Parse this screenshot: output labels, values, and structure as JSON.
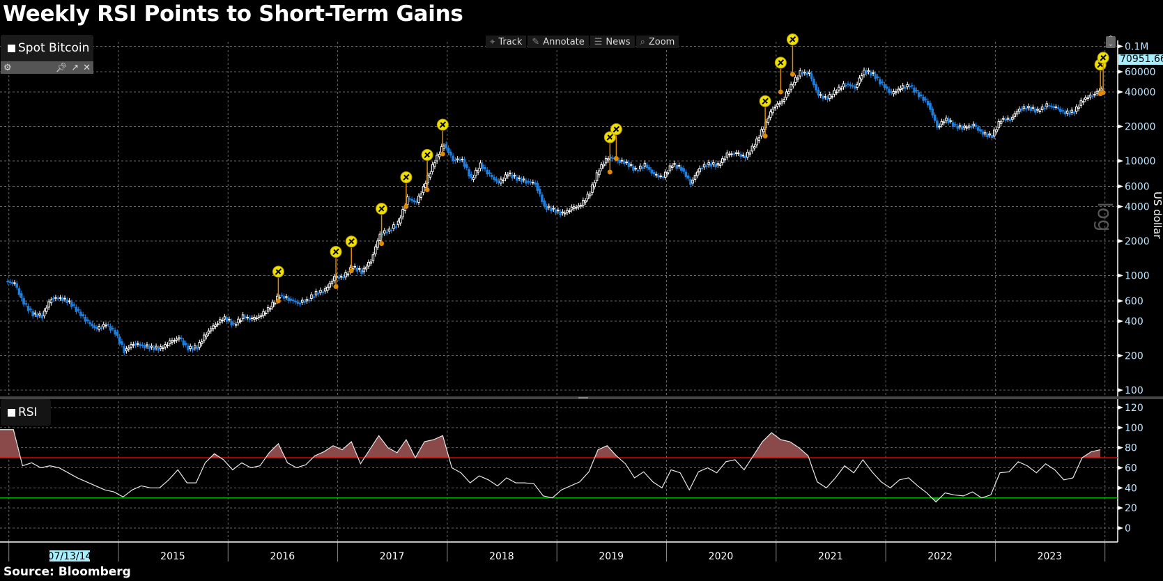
{
  "title": "Weekly RSI Points to Short-Term Gains",
  "source": "Source: Bloomberg",
  "legend": {
    "series": "Spot Bitcoin",
    "rsi": "RSI",
    "icons": [
      "gear-icon",
      "pin-icon",
      "expand-icon",
      "close-icon"
    ]
  },
  "toolbar": {
    "track": "Track",
    "annotate": "Annotate",
    "news": "News",
    "zoom": "Zoom"
  },
  "price_tag": "70951.66",
  "axis": {
    "price_label": "US dollar",
    "scale_label": "log",
    "highlight_date": "07/13/14"
  },
  "colors": {
    "up": "#ffffff",
    "down": "#1e7fe0",
    "overbought": "#ff0000",
    "oversold": "#00cc00",
    "marker": "#f0e000",
    "marker_stem": "#e08a00",
    "rsi_fill": "#8a4a4a"
  },
  "chart_data": [
    {
      "type": "candlestick",
      "title": "Spot Bitcoin",
      "ylabel": "US dollar",
      "yscale": "log",
      "ylim": [
        100,
        100000
      ],
      "yticks": [
        100,
        200,
        400,
        600,
        1000,
        2000,
        4000,
        6000,
        10000,
        20000,
        40000,
        60000,
        100000
      ],
      "ytick_labels": [
        "100",
        "200",
        "400",
        "600",
        "1000",
        "2000",
        "4000",
        "6000",
        "10000",
        "20000",
        "40000",
        "60000",
        "0.1M"
      ],
      "x_labels": [
        "07/13/14",
        "2015",
        "2016",
        "2017",
        "2018",
        "2019",
        "2020",
        "2021",
        "2022",
        "2023"
      ],
      "grid": true,
      "monthly_close": {
        "2014": [
          850,
          570,
          460,
          445,
          630,
          640,
          585,
          480,
          390,
          340,
          375,
          320
        ],
        "2015": [
          220,
          255,
          245,
          235,
          230,
          262,
          285,
          230,
          237,
          314,
          377,
          430
        ],
        "2016": [
          370,
          437,
          416,
          448,
          531,
          673,
          624,
          575,
          609,
          700,
          742,
          963
        ],
        "2017": [
          970,
          1190,
          1080,
          1350,
          2300,
          2480,
          2875,
          4700,
          4340,
          6470,
          10000,
          14000
        ],
        "2018": [
          10200,
          10300,
          6900,
          9240,
          7500,
          6400,
          7730,
          7030,
          6630,
          6370,
          4000,
          3740
        ],
        "2019": [
          3450,
          3850,
          4100,
          5300,
          8550,
          10800,
          10100,
          9600,
          8300,
          9200,
          7550,
          7200
        ],
        "2020": [
          9350,
          8600,
          6400,
          8650,
          9450,
          9140,
          11350,
          11650,
          10780,
          13800,
          19700,
          29000
        ],
        "2021": [
          33100,
          45200,
          58800,
          57700,
          37300,
          35000,
          41500,
          47100,
          43800,
          61300,
          57000,
          46300
        ],
        "2022": [
          38500,
          43200,
          45500,
          37700,
          31800,
          19900,
          23300,
          20000,
          19400,
          20500,
          17200,
          16500
        ],
        "2023": [
          23100,
          23100,
          28500,
          29300,
          27200,
          30500,
          29200,
          26000,
          27000,
          34500,
          37700,
          42300
        ]
      },
      "markers": [
        {
          "date": "2016-06",
          "price": 600
        },
        {
          "date": "2016-12",
          "price": 800
        },
        {
          "date": "2017-02",
          "price": 1100
        },
        {
          "date": "2017-05",
          "price": 1900
        },
        {
          "date": "2017-08",
          "price": 4000
        },
        {
          "date": "2017-10",
          "price": 5600
        },
        {
          "date": "2017-12",
          "price": 11500
        },
        {
          "date": "2019-06",
          "price": 8000
        },
        {
          "date": "2019-07",
          "price": 10500
        },
        {
          "date": "2020-11",
          "price": 16500
        },
        {
          "date": "2021-01",
          "price": 40000
        },
        {
          "date": "2021-02",
          "price": 57000
        },
        {
          "date": "2023-12",
          "price": 38500
        },
        {
          "date": "2023-12",
          "price": 39500
        }
      ]
    },
    {
      "type": "line",
      "title": "RSI",
      "ylim": [
        -5,
        125
      ],
      "yticks": [
        0,
        20,
        40,
        60,
        80,
        100,
        120
      ],
      "overbought": 70,
      "oversold": 30,
      "grid": true,
      "monthly": {
        "2014": [
          98,
          62,
          65,
          60,
          62,
          60,
          55,
          50,
          46,
          42,
          38,
          36
        ],
        "2015": [
          31,
          38,
          42,
          40,
          40,
          48,
          58,
          45,
          45,
          65,
          74,
          68
        ],
        "2016": [
          58,
          65,
          60,
          62,
          75,
          84,
          65,
          60,
          63,
          72,
          76,
          82
        ],
        "2017": [
          78,
          86,
          64,
          78,
          92,
          80,
          75,
          88,
          70,
          86,
          88,
          92
        ],
        "2018": [
          60,
          55,
          45,
          52,
          48,
          42,
          50,
          45,
          45,
          44,
          32,
          30
        ],
        "2019": [
          38,
          42,
          46,
          56,
          78,
          82,
          72,
          64,
          50,
          56,
          46,
          40
        ],
        "2020": [
          58,
          55,
          38,
          56,
          60,
          55,
          66,
          68,
          58,
          72,
          86,
          95
        ],
        "2021": [
          88,
          86,
          80,
          72,
          46,
          40,
          50,
          62,
          55,
          68,
          56,
          46
        ],
        "2022": [
          40,
          48,
          50,
          42,
          35,
          26,
          35,
          33,
          32,
          36,
          30,
          33
        ],
        "2023": [
          55,
          56,
          66,
          62,
          55,
          64,
          58,
          48,
          50,
          70,
          76,
          78
        ]
      }
    }
  ]
}
